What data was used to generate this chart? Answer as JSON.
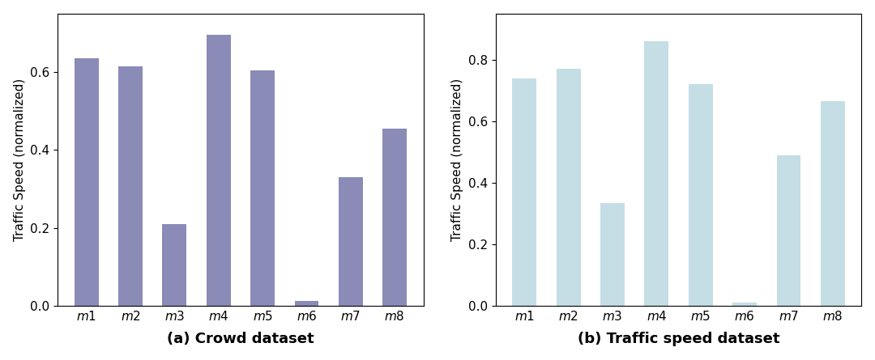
{
  "categories": [
    "m1",
    "m2",
    "m3",
    "m4",
    "m5",
    "m6",
    "m7",
    "m8"
  ],
  "crowd_values": [
    0.635,
    0.615,
    0.21,
    0.695,
    0.605,
    0.013,
    0.33,
    0.455
  ],
  "traffic_values": [
    0.74,
    0.77,
    0.335,
    0.86,
    0.72,
    0.012,
    0.49,
    0.665
  ],
  "crowd_color": "#8b8bb8",
  "traffic_color": "#c5dde5",
  "crowd_ylabel": "Traffic Speed (normalized)",
  "traffic_ylabel": "Traffic Speed (normalized)",
  "crowd_title": "(a) Crowd dataset",
  "traffic_title": "(b) Traffic speed dataset",
  "crowd_ylim": [
    0,
    0.75
  ],
  "traffic_ylim": [
    0,
    0.95
  ],
  "title_fontsize": 13,
  "label_fontsize": 11,
  "tick_fontsize": 11,
  "bar_width": 0.55
}
